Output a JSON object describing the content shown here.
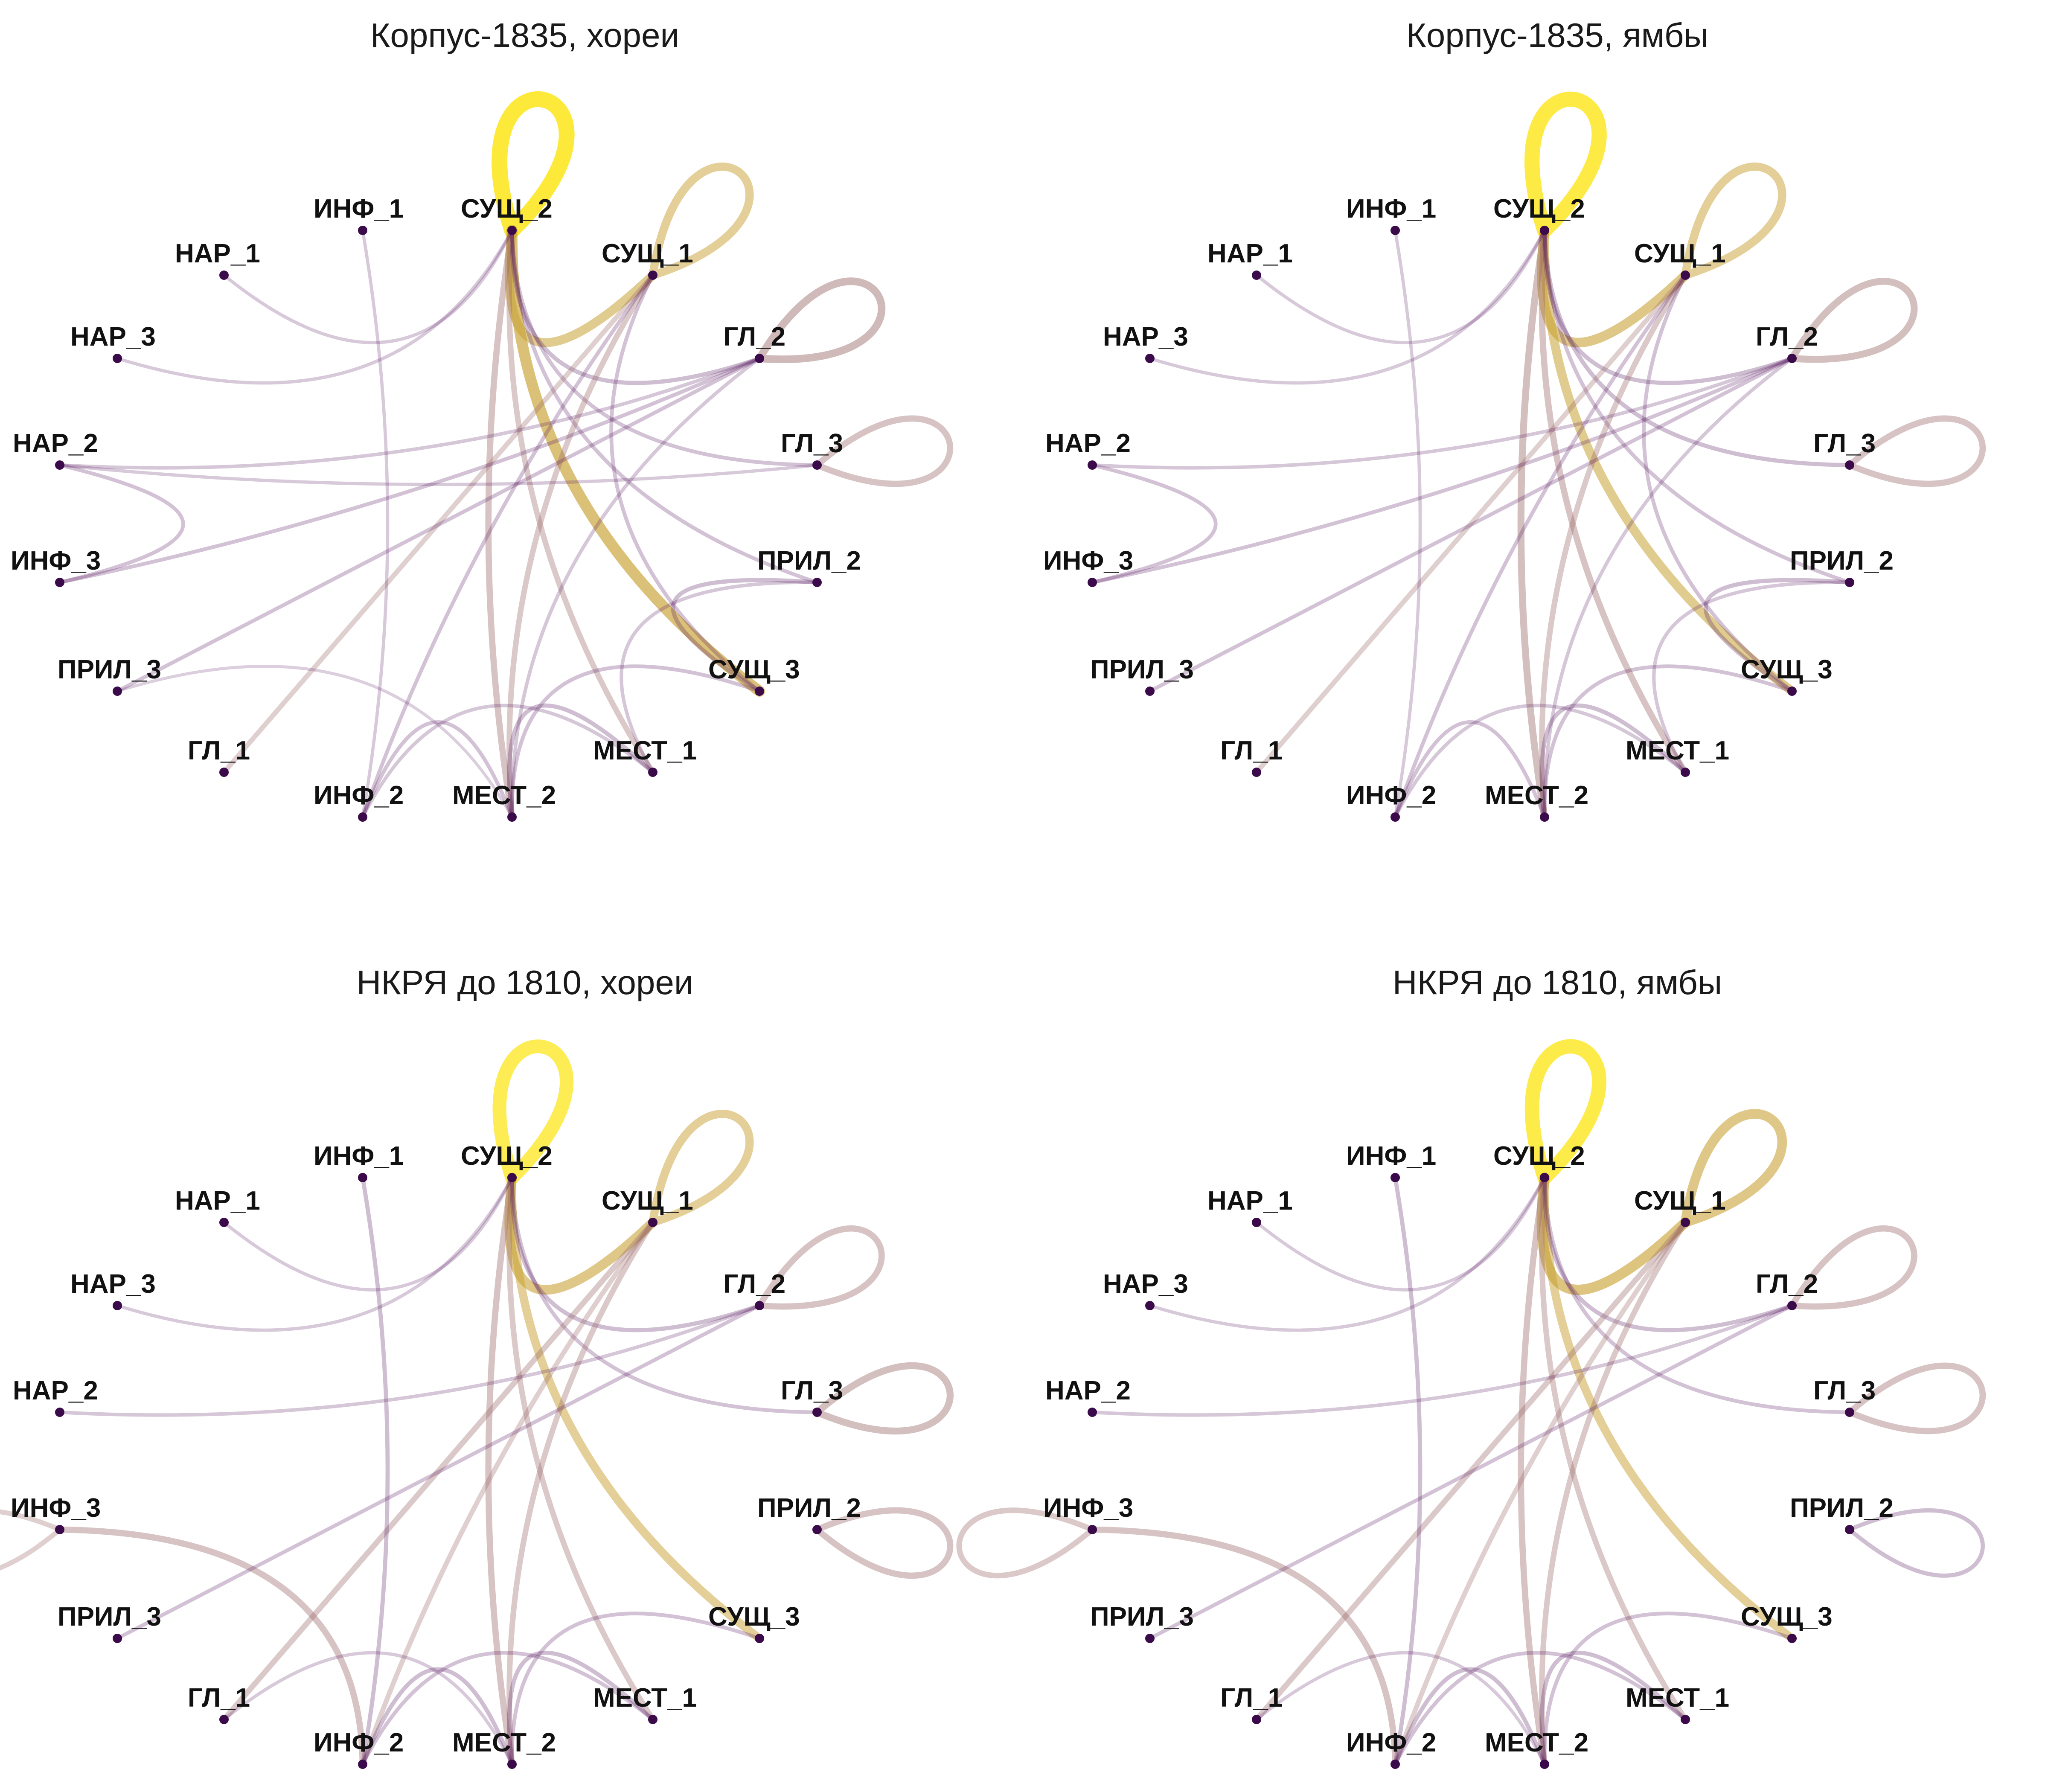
{
  "panels": [
    {
      "title": "Корпус-1835, хореи"
    },
    {
      "title": "Корпус-1835, ямбы"
    },
    {
      "title": "НКРЯ до 1810, хореи"
    },
    {
      "title": "НКРЯ до 1810, ямбы"
    }
  ],
  "nodes": [
    "СУЩ_2",
    "СУЩ_1",
    "ГЛ_2",
    "ГЛ_3",
    "ПРИЛ_2",
    "СУЩ_3",
    "МЕСТ_1",
    "МЕСТ_2",
    "ИНФ_2",
    "ГЛ_1",
    "ПРИЛ_3",
    "ИНФ_3",
    "НАР_2",
    "НАР_3",
    "НАР_1",
    "ИНФ_1"
  ],
  "colors": {
    "weak": "#5b1f63",
    "mid": "#9b6a6a",
    "strong": "#c8a030",
    "max": "#fde725",
    "node": "#3b0a4a"
  },
  "edges": [
    [
      {
        "from": "СУЩ_2",
        "to": "СУЩ_2",
        "w": 1.0
      },
      {
        "from": "СУЩ_1",
        "to": "СУЩ_1",
        "w": 0.45
      },
      {
        "from": "ГЛ_2",
        "to": "ГЛ_2",
        "w": 0.4
      },
      {
        "from": "ГЛ_3",
        "to": "ГЛ_3",
        "w": 0.3
      },
      {
        "from": "СУЩ_2",
        "to": "СУЩ_3",
        "w": 0.65
      },
      {
        "from": "СУЩ_2",
        "to": "СУЩ_1",
        "w": 0.5
      },
      {
        "from": "СУЩ_2",
        "to": "МЕСТ_2",
        "w": 0.3
      },
      {
        "from": "СУЩ_2",
        "to": "МЕСТ_1",
        "w": 0.25
      },
      {
        "from": "СУЩ_2",
        "to": "ГЛ_2",
        "w": 0.15
      },
      {
        "from": "СУЩ_2",
        "to": "ГЛ_3",
        "w": 0.12
      },
      {
        "from": "СУЩ_2",
        "to": "ПРИЛ_2",
        "w": 0.12
      },
      {
        "from": "СУЩ_2",
        "to": "НАР_1",
        "w": 0.08
      },
      {
        "from": "СУЩ_2",
        "to": "НАР_3",
        "w": 0.08
      },
      {
        "from": "СУЩ_1",
        "to": "МЕСТ_2",
        "w": 0.25
      },
      {
        "from": "СУЩ_1",
        "to": "ГЛ_1",
        "w": 0.2
      },
      {
        "from": "СУЩ_1",
        "to": "ИНФ_2",
        "w": 0.12
      },
      {
        "from": "СУЩ_1",
        "to": "СУЩ_3",
        "w": 0.12
      },
      {
        "from": "ГЛ_2",
        "to": "ИНФ_3",
        "w": 0.12
      },
      {
        "from": "ГЛ_2",
        "to": "ПРИЛ_3",
        "w": 0.12
      },
      {
        "from": "ГЛ_2",
        "to": "НАР_2",
        "w": 0.1
      },
      {
        "from": "ГЛ_2",
        "to": "МЕСТ_2",
        "w": 0.1
      },
      {
        "from": "ГЛ_3",
        "to": "НАР_2",
        "w": 0.08
      },
      {
        "from": "ИНФ_3",
        "to": "НАР_2",
        "w": 0.12
      },
      {
        "from": "ИНФ_1",
        "to": "ИНФ_2",
        "w": 0.08
      },
      {
        "from": "ПРИЛ_2",
        "to": "СУЩ_3",
        "w": 0.15
      },
      {
        "from": "ПРИЛ_2",
        "to": "МЕСТ_1",
        "w": 0.1
      },
      {
        "from": "СУЩ_3",
        "to": "МЕСТ_2",
        "w": 0.12
      },
      {
        "from": "МЕСТ_1",
        "to": "МЕСТ_2",
        "w": 0.15
      },
      {
        "from": "ИНФ_2",
        "to": "МЕСТ_2",
        "w": 0.12
      },
      {
        "from": "ИНФ_2",
        "to": "МЕСТ_1",
        "w": 0.1
      },
      {
        "from": "ПРИЛ_3",
        "to": "МЕСТ_2",
        "w": 0.06
      }
    ],
    [
      {
        "from": "СУЩ_2",
        "to": "СУЩ_2",
        "w": 0.95
      },
      {
        "from": "СУЩ_1",
        "to": "СУЩ_1",
        "w": 0.45
      },
      {
        "from": "ГЛ_2",
        "to": "ГЛ_2",
        "w": 0.35
      },
      {
        "from": "ГЛ_3",
        "to": "ГЛ_3",
        "w": 0.3
      },
      {
        "from": "СУЩ_2",
        "to": "СУЩ_3",
        "w": 0.5
      },
      {
        "from": "СУЩ_2",
        "to": "СУЩ_1",
        "w": 0.55
      },
      {
        "from": "СУЩ_2",
        "to": "МЕСТ_2",
        "w": 0.35
      },
      {
        "from": "СУЩ_2",
        "to": "МЕСТ_1",
        "w": 0.3
      },
      {
        "from": "СУЩ_2",
        "to": "ГЛ_2",
        "w": 0.15
      },
      {
        "from": "СУЩ_2",
        "to": "ГЛ_3",
        "w": 0.15
      },
      {
        "from": "СУЩ_2",
        "to": "ПРИЛ_2",
        "w": 0.12
      },
      {
        "from": "СУЩ_2",
        "to": "НАР_1",
        "w": 0.08
      },
      {
        "from": "СУЩ_2",
        "to": "НАР_3",
        "w": 0.08
      },
      {
        "from": "СУЩ_1",
        "to": "МЕСТ_2",
        "w": 0.25
      },
      {
        "from": "СУЩ_1",
        "to": "ГЛ_1",
        "w": 0.2
      },
      {
        "from": "СУЩ_1",
        "to": "ИНФ_2",
        "w": 0.12
      },
      {
        "from": "СУЩ_1",
        "to": "СУЩ_3",
        "w": 0.12
      },
      {
        "from": "ГЛ_2",
        "to": "ИНФ_3",
        "w": 0.12
      },
      {
        "from": "ГЛ_2",
        "to": "ПРИЛ_3",
        "w": 0.12
      },
      {
        "from": "ГЛ_2",
        "to": "НАР_2",
        "w": 0.1
      },
      {
        "from": "ГЛ_2",
        "to": "МЕСТ_2",
        "w": 0.1
      },
      {
        "from": "ИНФ_3",
        "to": "НАР_2",
        "w": 0.12
      },
      {
        "from": "ИНФ_1",
        "to": "ИНФ_2",
        "w": 0.08
      },
      {
        "from": "ПРИЛ_2",
        "to": "СУЩ_3",
        "w": 0.15
      },
      {
        "from": "ПРИЛ_2",
        "to": "МЕСТ_1",
        "w": 0.1
      },
      {
        "from": "СУЩ_3",
        "to": "МЕСТ_2",
        "w": 0.12
      },
      {
        "from": "МЕСТ_1",
        "to": "МЕСТ_2",
        "w": 0.15
      },
      {
        "from": "ИНФ_2",
        "to": "МЕСТ_2",
        "w": 0.12
      },
      {
        "from": "ИНФ_2",
        "to": "МЕСТ_1",
        "w": 0.1
      }
    ],
    [
      {
        "from": "СУЩ_2",
        "to": "СУЩ_2",
        "w": 0.85
      },
      {
        "from": "СУЩ_1",
        "to": "СУЩ_1",
        "w": 0.45
      },
      {
        "from": "ГЛ_2",
        "to": "ГЛ_2",
        "w": 0.3
      },
      {
        "from": "ГЛ_3",
        "to": "ГЛ_3",
        "w": 0.35
      },
      {
        "from": "ИНФ_3",
        "to": "ИНФ_3",
        "w": 0.2
      },
      {
        "from": "ПРИЛ_2",
        "to": "ПРИЛ_2",
        "w": 0.3
      },
      {
        "from": "СУЩ_2",
        "to": "СУЩ_3",
        "w": 0.45
      },
      {
        "from": "СУЩ_2",
        "to": "СУЩ_1",
        "w": 0.55
      },
      {
        "from": "СУЩ_2",
        "to": "МЕСТ_2",
        "w": 0.3
      },
      {
        "from": "СУЩ_2",
        "to": "МЕСТ_1",
        "w": 0.25
      },
      {
        "from": "СУЩ_2",
        "to": "ГЛ_2",
        "w": 0.15
      },
      {
        "from": "СУЩ_2",
        "to": "ГЛ_3",
        "w": 0.12
      },
      {
        "from": "СУЩ_2",
        "to": "НАР_1",
        "w": 0.08
      },
      {
        "from": "СУЩ_2",
        "to": "НАР_3",
        "w": 0.08
      },
      {
        "from": "СУЩ_1",
        "to": "МЕСТ_2",
        "w": 0.25
      },
      {
        "from": "СУЩ_1",
        "to": "ГЛ_1",
        "w": 0.25
      },
      {
        "from": "СУЩ_1",
        "to": "ИНФ_2",
        "w": 0.2
      },
      {
        "from": "ИНФ_3",
        "to": "ИНФ_2",
        "w": 0.3
      },
      {
        "from": "ГЛ_2",
        "to": "ПРИЛ_3",
        "w": 0.12
      },
      {
        "from": "ГЛ_2",
        "to": "НАР_2",
        "w": 0.1
      },
      {
        "from": "ИНФ_1",
        "to": "ИНФ_2",
        "w": 0.15
      },
      {
        "from": "СУЩ_3",
        "to": "МЕСТ_2",
        "w": 0.12
      },
      {
        "from": "МЕСТ_1",
        "to": "МЕСТ_2",
        "w": 0.15
      },
      {
        "from": "ИНФ_2",
        "to": "МЕСТ_2",
        "w": 0.15
      },
      {
        "from": "ИНФ_2",
        "to": "МЕСТ_1",
        "w": 0.12
      },
      {
        "from": "ГЛ_1",
        "to": "МЕСТ_2",
        "w": 0.08
      }
    ],
    [
      {
        "from": "СУЩ_2",
        "to": "СУЩ_2",
        "w": 0.9
      },
      {
        "from": "СУЩ_1",
        "to": "СУЩ_1",
        "w": 0.55
      },
      {
        "from": "ГЛ_2",
        "to": "ГЛ_2",
        "w": 0.3
      },
      {
        "from": "ГЛ_3",
        "to": "ГЛ_3",
        "w": 0.3
      },
      {
        "from": "ИНФ_3",
        "to": "ИНФ_3",
        "w": 0.25
      },
      {
        "from": "ПРИЛ_2",
        "to": "ПРИЛ_2",
        "w": 0.15
      },
      {
        "from": "СУЩ_2",
        "to": "СУЩ_3",
        "w": 0.45
      },
      {
        "from": "СУЩ_2",
        "to": "СУЩ_1",
        "w": 0.6
      },
      {
        "from": "СУЩ_2",
        "to": "МЕСТ_2",
        "w": 0.3
      },
      {
        "from": "СУЩ_2",
        "to": "МЕСТ_1",
        "w": 0.25
      },
      {
        "from": "СУЩ_2",
        "to": "ГЛ_2",
        "w": 0.15
      },
      {
        "from": "СУЩ_2",
        "to": "ГЛ_3",
        "w": 0.12
      },
      {
        "from": "СУЩ_2",
        "to": "НАР_1",
        "w": 0.08
      },
      {
        "from": "СУЩ_2",
        "to": "НАР_3",
        "w": 0.08
      },
      {
        "from": "СУЩ_1",
        "to": "МЕСТ_2",
        "w": 0.25
      },
      {
        "from": "СУЩ_1",
        "to": "ГЛ_1",
        "w": 0.25
      },
      {
        "from": "СУЩ_1",
        "to": "ИНФ_2",
        "w": 0.2
      },
      {
        "from": "ИНФ_3",
        "to": "ИНФ_2",
        "w": 0.3
      },
      {
        "from": "ГЛ_2",
        "to": "ПРИЛ_3",
        "w": 0.12
      },
      {
        "from": "ГЛ_2",
        "to": "НАР_2",
        "w": 0.1
      },
      {
        "from": "ИНФ_1",
        "to": "ИНФ_2",
        "w": 0.15
      },
      {
        "from": "СУЩ_3",
        "to": "МЕСТ_2",
        "w": 0.12
      },
      {
        "from": "МЕСТ_1",
        "to": "МЕСТ_2",
        "w": 0.15
      },
      {
        "from": "ИНФ_2",
        "to": "МЕСТ_2",
        "w": 0.15
      },
      {
        "from": "ИНФ_2",
        "to": "МЕСТ_1",
        "w": 0.12
      },
      {
        "from": "ГЛ_1",
        "to": "МЕСТ_2",
        "w": 0.08
      }
    ]
  ]
}
